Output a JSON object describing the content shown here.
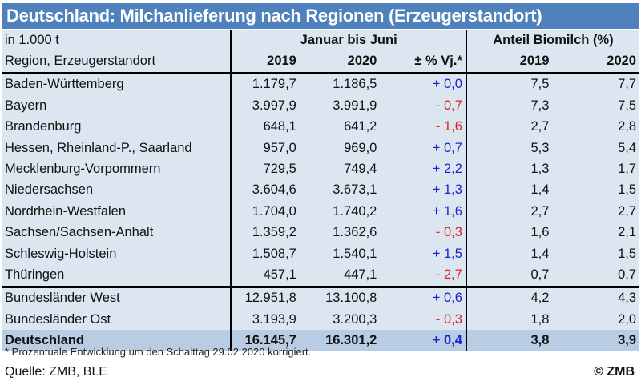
{
  "title": "Deutschland: Milchanlieferung nach Regionen (Erzeugerstandort)",
  "header": {
    "unit": "in 1.000 t",
    "period": "Januar bis Juni",
    "bio": "Anteil Biomilch (%)",
    "region": "Region, Erzeugerstandort",
    "y2019": "2019",
    "y2020": "2020",
    "pct": "± % Vj.*",
    "bio2019": "2019",
    "bio2020": "2020"
  },
  "rows": [
    {
      "region": "Baden-Württemberg",
      "v2019": "1.179,7",
      "v2020": "1.186,5",
      "pct": "+ 0,0",
      "bio2019": "7,5",
      "bio2020": "7,7"
    },
    {
      "region": "Bayern",
      "v2019": "3.997,9",
      "v2020": "3.991,9",
      "pct": "- 0,7",
      "bio2019": "7,3",
      "bio2020": "7,5"
    },
    {
      "region": "Brandenburg",
      "v2019": "648,1",
      "v2020": "641,2",
      "pct": "- 1,6",
      "bio2019": "2,7",
      "bio2020": "2,8"
    },
    {
      "region": "Hessen, Rheinland-P., Saarland",
      "v2019": "957,0",
      "v2020": "969,0",
      "pct": "+ 0,7",
      "bio2019": "5,3",
      "bio2020": "5,4"
    },
    {
      "region": "Mecklenburg-Vorpommern",
      "v2019": "729,5",
      "v2020": "749,4",
      "pct": "+ 2,2",
      "bio2019": "1,3",
      "bio2020": "1,7"
    },
    {
      "region": "Niedersachsen",
      "v2019": "3.604,6",
      "v2020": "3.673,1",
      "pct": "+ 1,3",
      "bio2019": "1,4",
      "bio2020": "1,5"
    },
    {
      "region": "Nordrhein-Westfalen",
      "v2019": "1.704,0",
      "v2020": "1.740,2",
      "pct": "+ 1,6",
      "bio2019": "2,7",
      "bio2020": "2,7"
    },
    {
      "region": "Sachsen/Sachsen-Anhalt",
      "v2019": "1.359,2",
      "v2020": "1.362,6",
      "pct": "- 0,3",
      "bio2019": "1,6",
      "bio2020": "2,1"
    },
    {
      "region": "Schleswig-Holstein",
      "v2019": "1.508,7",
      "v2020": "1.540,1",
      "pct": "+ 1,5",
      "bio2019": "1,4",
      "bio2020": "1,5"
    },
    {
      "region": "Thüringen",
      "v2019": "457,1",
      "v2020": "447,1",
      "pct": "- 2,7",
      "bio2019": "0,7",
      "bio2020": "0,7"
    },
    {
      "region": "Bundesländer West",
      "v2019": "12.951,8",
      "v2020": "13.100,8",
      "pct": "+ 0,6",
      "bio2019": "4,2",
      "bio2020": "4,3"
    },
    {
      "region": "Bundesländer Ost",
      "v2019": "3.193,9",
      "v2020": "3.200,3",
      "pct": "- 0,3",
      "bio2019": "1,8",
      "bio2020": "2,0"
    },
    {
      "region": "Deutschland",
      "v2019": "16.145,7",
      "v2020": "16.301,2",
      "pct": "+ 0,4",
      "bio2019": "3,8",
      "bio2020": "3,9"
    }
  ],
  "colors": {
    "title_bg": "#4f81bd",
    "row_bg": "#dce6f1",
    "total_bg": "#b8cce4",
    "positive": "#1f1fd0",
    "negative": "#e02020"
  },
  "footnote": "* Prozentuale Entwicklung um den Schalttag 29.02.2020 korrigiert.",
  "source": "Quelle: ZMB, BLE",
  "copyright": "© ZMB"
}
